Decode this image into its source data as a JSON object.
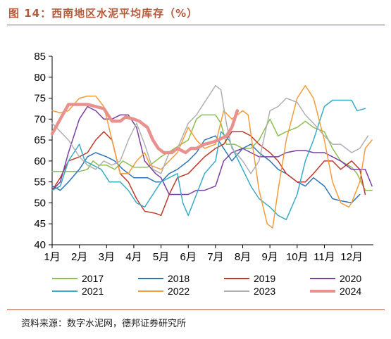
{
  "header": {
    "title": "图 14：西南地区水泥平均库存（%）"
  },
  "footer": {
    "source": "资料来源：数字水泥网，德邦证券研究所"
  },
  "chart_data": {
    "type": "line",
    "title": "图 14：西南地区水泥平均库存（%）",
    "xlabel": "",
    "ylabel": "",
    "ylim": [
      40,
      85
    ],
    "yticks": [
      40,
      45,
      50,
      55,
      60,
      65,
      70,
      75,
      80,
      85
    ],
    "xlim": [
      1,
      12.8
    ],
    "xticks": [
      1,
      2,
      3,
      4,
      5,
      6,
      7,
      8,
      9,
      10,
      11,
      12
    ],
    "xticklabels": [
      "1月",
      "2月",
      "3月",
      "4月",
      "5月",
      "6月",
      "7月",
      "8月",
      "9月",
      "10月",
      "11月",
      "12月"
    ],
    "grid": false,
    "legend": "bottom",
    "series": [
      {
        "name": "2017",
        "color": "#8cbf4f",
        "width": 1.5,
        "points": [
          [
            1,
            57.5
          ],
          [
            1.5,
            57.5
          ],
          [
            2,
            57.5
          ],
          [
            2.3,
            58
          ],
          [
            2.5,
            60
          ],
          [
            2.7,
            59
          ],
          [
            3,
            59
          ],
          [
            3.3,
            58
          ],
          [
            3.6,
            60
          ],
          [
            4,
            58.5
          ],
          [
            4.5,
            58.5
          ],
          [
            5,
            61
          ],
          [
            5.5,
            63
          ],
          [
            6,
            65
          ],
          [
            6.3,
            70
          ],
          [
            6.5,
            71
          ],
          [
            6.8,
            71
          ],
          [
            7,
            71
          ],
          [
            7.2,
            69
          ],
          [
            7.4,
            64
          ],
          [
            7.7,
            64
          ],
          [
            8,
            63
          ],
          [
            8.3,
            63
          ],
          [
            8.6,
            65
          ],
          [
            9,
            70
          ],
          [
            9.3,
            66
          ],
          [
            9.6,
            67
          ],
          [
            10,
            68
          ],
          [
            10.3,
            69.5
          ],
          [
            10.6,
            68
          ],
          [
            11,
            67
          ],
          [
            11.3,
            63
          ],
          [
            11.6,
            60
          ],
          [
            12,
            58.5
          ],
          [
            12.2,
            57
          ],
          [
            12.5,
            53
          ],
          [
            12.75,
            53
          ]
        ]
      },
      {
        "name": "2018",
        "color": "#2e75b6",
        "width": 1.5,
        "points": [
          [
            1,
            54
          ],
          [
            1.3,
            53
          ],
          [
            1.6,
            55
          ],
          [
            2,
            58
          ],
          [
            2.3,
            61
          ],
          [
            2.6,
            62
          ],
          [
            3,
            61
          ],
          [
            3.3,
            60
          ],
          [
            3.6,
            58
          ],
          [
            4,
            56
          ],
          [
            4.5,
            56
          ],
          [
            4.8,
            55
          ],
          [
            5,
            55
          ],
          [
            5.3,
            57
          ],
          [
            5.6,
            58
          ],
          [
            6,
            60
          ],
          [
            6.3,
            62
          ],
          [
            6.6,
            65
          ],
          [
            7,
            66
          ],
          [
            7.3,
            63
          ],
          [
            7.6,
            60
          ],
          [
            8,
            63
          ],
          [
            8.3,
            64
          ],
          [
            8.6,
            62
          ],
          [
            9,
            60
          ],
          [
            9.3,
            58
          ],
          [
            9.6,
            57
          ],
          [
            10,
            55
          ],
          [
            10.3,
            54
          ],
          [
            10.6,
            56
          ],
          [
            11,
            54
          ],
          [
            11.3,
            51
          ],
          [
            11.6,
            50.5
          ],
          [
            12,
            50
          ],
          [
            12.3,
            52
          ]
        ]
      },
      {
        "name": "2019",
        "color": "#c0392b",
        "width": 1.5,
        "points": [
          [
            1,
            53
          ],
          [
            1.3,
            56
          ],
          [
            1.6,
            60
          ],
          [
            2,
            61
          ],
          [
            2.3,
            62
          ],
          [
            2.6,
            65
          ],
          [
            2.9,
            67
          ],
          [
            3.2,
            65
          ],
          [
            3.5,
            57
          ],
          [
            3.8,
            55
          ],
          [
            4.1,
            51
          ],
          [
            4.4,
            48
          ],
          [
            4.8,
            47.5
          ],
          [
            5,
            47
          ],
          [
            5.3,
            52
          ],
          [
            5.6,
            56
          ],
          [
            6,
            57
          ],
          [
            6.3,
            59
          ],
          [
            6.6,
            61
          ],
          [
            7,
            63
          ],
          [
            7.3,
            64
          ],
          [
            7.6,
            67
          ],
          [
            8,
            67
          ],
          [
            8.3,
            66
          ],
          [
            8.6,
            64
          ],
          [
            9,
            62
          ],
          [
            9.3,
            60
          ],
          [
            9.6,
            57
          ],
          [
            10,
            55
          ],
          [
            10.3,
            55
          ],
          [
            10.6,
            57
          ],
          [
            11,
            60
          ],
          [
            11.3,
            60
          ],
          [
            11.6,
            58
          ],
          [
            12,
            60
          ],
          [
            12.3,
            58
          ],
          [
            12.5,
            52
          ]
        ]
      },
      {
        "name": "2020",
        "color": "#7b3f9e",
        "width": 1.5,
        "points": [
          [
            1,
            53
          ],
          [
            1.3,
            55
          ],
          [
            1.6,
            62
          ],
          [
            2,
            70
          ],
          [
            2.3,
            73
          ],
          [
            2.6,
            72
          ],
          [
            2.9,
            70
          ],
          [
            3.2,
            70
          ],
          [
            3.5,
            71
          ],
          [
            3.8,
            71
          ],
          [
            4.1,
            68
          ],
          [
            4.4,
            60
          ],
          [
            4.8,
            57
          ],
          [
            5,
            56
          ],
          [
            5.3,
            52
          ],
          [
            5.6,
            52
          ],
          [
            6,
            52
          ],
          [
            6.3,
            53
          ],
          [
            6.6,
            53
          ],
          [
            7,
            54
          ],
          [
            7.3,
            60
          ],
          [
            7.6,
            62
          ],
          [
            8,
            63
          ],
          [
            8.3,
            62
          ],
          [
            8.6,
            61
          ],
          [
            9,
            61
          ],
          [
            9.3,
            61
          ],
          [
            9.6,
            62
          ],
          [
            10,
            62.5
          ],
          [
            10.3,
            62.5
          ],
          [
            10.6,
            62
          ],
          [
            11,
            62
          ],
          [
            11.3,
            61
          ],
          [
            11.6,
            60
          ],
          [
            12,
            58
          ],
          [
            12.3,
            58
          ],
          [
            12.5,
            58
          ],
          [
            12.75,
            54
          ]
        ]
      },
      {
        "name": "2021",
        "color": "#3aabc4",
        "width": 1.5,
        "points": [
          [
            1,
            53
          ],
          [
            1.3,
            54
          ],
          [
            1.6,
            60
          ],
          [
            2,
            64
          ],
          [
            2.2,
            60
          ],
          [
            2.5,
            59
          ],
          [
            2.8,
            58
          ],
          [
            3.1,
            55
          ],
          [
            3.5,
            55
          ],
          [
            3.8,
            53
          ],
          [
            4.1,
            50
          ],
          [
            4.4,
            49
          ],
          [
            4.7,
            52
          ],
          [
            5,
            55
          ],
          [
            5.3,
            56
          ],
          [
            5.6,
            57
          ],
          [
            5.8,
            50
          ],
          [
            6,
            47
          ],
          [
            6.3,
            52
          ],
          [
            6.6,
            57
          ],
          [
            7,
            60
          ],
          [
            7.2,
            67
          ],
          [
            7.5,
            65
          ],
          [
            7.7,
            62
          ],
          [
            8,
            58
          ],
          [
            8.3,
            54
          ],
          [
            8.6,
            51
          ],
          [
            9,
            49
          ],
          [
            9.3,
            47
          ],
          [
            9.6,
            46
          ],
          [
            10,
            52
          ],
          [
            10.3,
            60
          ],
          [
            10.6,
            65
          ],
          [
            11,
            73
          ],
          [
            11.3,
            74.5
          ],
          [
            11.6,
            74.5
          ],
          [
            12,
            74.5
          ],
          [
            12.2,
            72
          ],
          [
            12.5,
            72.5
          ]
        ]
      },
      {
        "name": "2022",
        "color": "#f39c3c",
        "width": 1.5,
        "points": [
          [
            1,
            72
          ],
          [
            1.3,
            71.5
          ],
          [
            1.6,
            72
          ],
          [
            2,
            75
          ],
          [
            2.3,
            75.5
          ],
          [
            2.6,
            75.5
          ],
          [
            2.9,
            73
          ],
          [
            3.2,
            65
          ],
          [
            3.5,
            57
          ],
          [
            3.8,
            57
          ],
          [
            4.1,
            60
          ],
          [
            4.4,
            62
          ],
          [
            4.6,
            59
          ],
          [
            5,
            58
          ],
          [
            5.3,
            60
          ],
          [
            5.6,
            62
          ],
          [
            6,
            68
          ],
          [
            6.3,
            65
          ],
          [
            6.6,
            63
          ],
          [
            7,
            64
          ],
          [
            7.3,
            72
          ],
          [
            7.6,
            70
          ],
          [
            8,
            72
          ],
          [
            8.2,
            71
          ],
          [
            8.4,
            62
          ],
          [
            8.6,
            53
          ],
          [
            8.9,
            45
          ],
          [
            9.1,
            44
          ],
          [
            9.3,
            53
          ],
          [
            9.6,
            65
          ],
          [
            10,
            75
          ],
          [
            10.3,
            78
          ],
          [
            10.6,
            75
          ],
          [
            11,
            65
          ],
          [
            11.3,
            55
          ],
          [
            11.6,
            50
          ],
          [
            11.9,
            49
          ],
          [
            12,
            50
          ],
          [
            12.3,
            55
          ],
          [
            12.5,
            63
          ],
          [
            12.75,
            65
          ]
        ]
      },
      {
        "name": "2023",
        "color": "#b0b0b0",
        "width": 1.5,
        "points": [
          [
            1,
            69
          ],
          [
            1.3,
            67
          ],
          [
            1.6,
            65
          ],
          [
            2,
            61
          ],
          [
            2.3,
            59
          ],
          [
            2.6,
            58
          ],
          [
            2.9,
            60
          ],
          [
            3.2,
            59
          ],
          [
            3.5,
            60
          ],
          [
            3.8,
            65
          ],
          [
            4.1,
            69
          ],
          [
            4.4,
            64
          ],
          [
            4.7,
            58
          ],
          [
            5,
            57
          ],
          [
            5.3,
            62
          ],
          [
            5.6,
            63
          ],
          [
            6,
            69
          ],
          [
            6.3,
            71
          ],
          [
            6.6,
            74
          ],
          [
            7,
            78
          ],
          [
            7.2,
            77
          ],
          [
            7.4,
            69
          ],
          [
            7.6,
            63
          ],
          [
            8,
            60
          ],
          [
            8.3,
            57
          ],
          [
            8.6,
            60
          ],
          [
            9,
            72
          ],
          [
            9.3,
            73
          ],
          [
            9.6,
            75
          ],
          [
            10,
            74
          ],
          [
            10.3,
            71
          ],
          [
            10.6,
            69
          ],
          [
            11,
            66
          ],
          [
            11.3,
            64
          ],
          [
            11.6,
            64
          ],
          [
            12,
            62
          ],
          [
            12.3,
            63
          ],
          [
            12.6,
            66
          ]
        ]
      },
      {
        "name": "2024",
        "color": "#e8928f",
        "width": 4.5,
        "points": [
          [
            1,
            66.5
          ],
          [
            1.3,
            70
          ],
          [
            1.6,
            73.5
          ],
          [
            2,
            73.5
          ],
          [
            2.3,
            73.5
          ],
          [
            2.6,
            73
          ],
          [
            2.9,
            72.5
          ],
          [
            3.2,
            69.5
          ],
          [
            3.5,
            69.5
          ],
          [
            3.7,
            70.5
          ],
          [
            4,
            70
          ],
          [
            4.2,
            69.5
          ],
          [
            4.5,
            68
          ],
          [
            4.7,
            65
          ],
          [
            4.9,
            63
          ],
          [
            5.1,
            62
          ],
          [
            5.4,
            62
          ],
          [
            5.6,
            63
          ],
          [
            5.9,
            62
          ],
          [
            6.1,
            63
          ],
          [
            6.3,
            63
          ],
          [
            6.6,
            64
          ],
          [
            6.9,
            64.5
          ],
          [
            7.1,
            65
          ],
          [
            7.4,
            66
          ],
          [
            7.6,
            68
          ],
          [
            7.8,
            72
          ]
        ]
      }
    ]
  }
}
